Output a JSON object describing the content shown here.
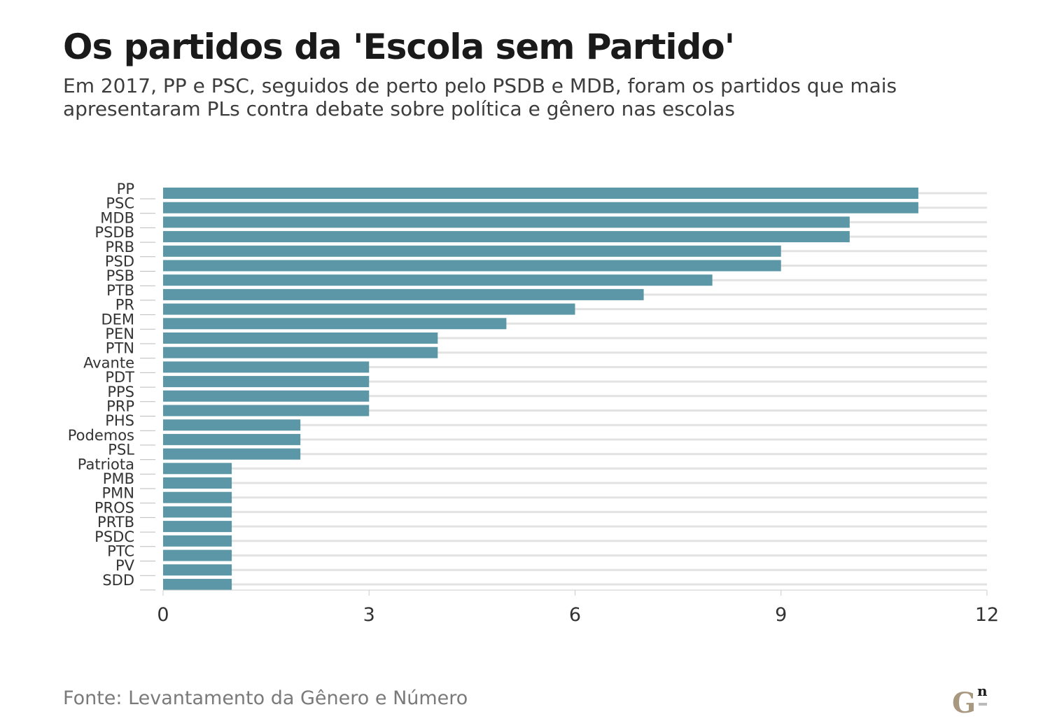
{
  "title": "Os partidos da 'Escola sem Partido'",
  "subtitle": "Em 2017, PP e PSC, seguidos de perto pelo PSDB e MDB, foram os partidos que mais apresentaram PLs contra debate sobre política e gênero nas escolas",
  "source": "Fonte: Levantamento da Gênero e Número",
  "logo": {
    "letters": "Gn",
    "icon": "genero-numero-logo"
  },
  "colors": {
    "bar": "#5b97a6",
    "grid": "#e3e3e3",
    "axis": "#cccccc",
    "text": "#333333",
    "logo": "#a89880"
  },
  "chart_data": {
    "type": "bar",
    "orientation": "horizontal",
    "categories": [
      "PP",
      "PSC",
      "MDB",
      "PSDB",
      "PRB",
      "PSD",
      "PSB",
      "PTB",
      "PR",
      "DEM",
      "PEN",
      "PTN",
      "Avante",
      "PDT",
      "PPS",
      "PRP",
      "PHS",
      "Podemos",
      "PSL",
      "Patriota",
      "PMB",
      "PMN",
      "PROS",
      "PRTB",
      "PSDC",
      "PTC",
      "PV",
      "SDD"
    ],
    "values": [
      11,
      11,
      10,
      10,
      9,
      9,
      8,
      7,
      6,
      5,
      4,
      4,
      3,
      3,
      3,
      3,
      2,
      2,
      2,
      1,
      1,
      1,
      1,
      1,
      1,
      1,
      1,
      1
    ],
    "xlim": [
      0,
      12
    ],
    "xticks": [
      "0",
      "3",
      "6",
      "9",
      "12"
    ],
    "grid": true,
    "xlabel": "",
    "ylabel": ""
  }
}
